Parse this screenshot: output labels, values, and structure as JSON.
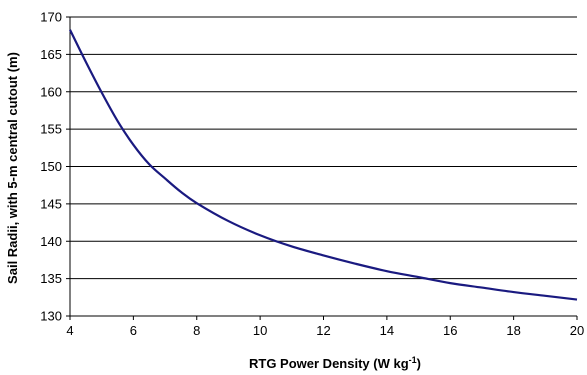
{
  "chart_data": {
    "type": "line",
    "title": "",
    "xlabel": "RTG Power Density (W kg",
    "xlabel_superscript": "-1",
    "xlabel_suffix": ")",
    "ylabel": "Sail Radii, with 5-m central cutout (m)",
    "xlim": [
      4,
      20
    ],
    "ylim": [
      130,
      170
    ],
    "x_ticks": [
      4,
      6,
      8,
      10,
      12,
      14,
      16,
      18,
      20
    ],
    "y_ticks": [
      130,
      135,
      140,
      145,
      150,
      155,
      160,
      165,
      170
    ],
    "grid": "horizontal",
    "legend": "none",
    "series": [
      {
        "color": "#1a1a80",
        "points": [
          [
            4,
            168.3
          ],
          [
            4.5,
            164.0
          ],
          [
            5,
            159.9
          ],
          [
            5.5,
            156.1
          ],
          [
            6,
            152.9
          ],
          [
            6.5,
            150.3
          ],
          [
            7,
            148.4
          ],
          [
            7.5,
            146.6
          ],
          [
            8,
            145.1
          ],
          [
            9,
            142.7
          ],
          [
            10,
            140.8
          ],
          [
            11,
            139.3
          ],
          [
            12,
            138.1
          ],
          [
            13,
            137.0
          ],
          [
            14,
            136.0
          ],
          [
            15,
            135.2
          ],
          [
            16,
            134.4
          ],
          [
            17,
            133.8
          ],
          [
            18,
            133.2
          ],
          [
            19,
            132.7
          ],
          [
            20,
            132.2
          ]
        ]
      }
    ]
  }
}
